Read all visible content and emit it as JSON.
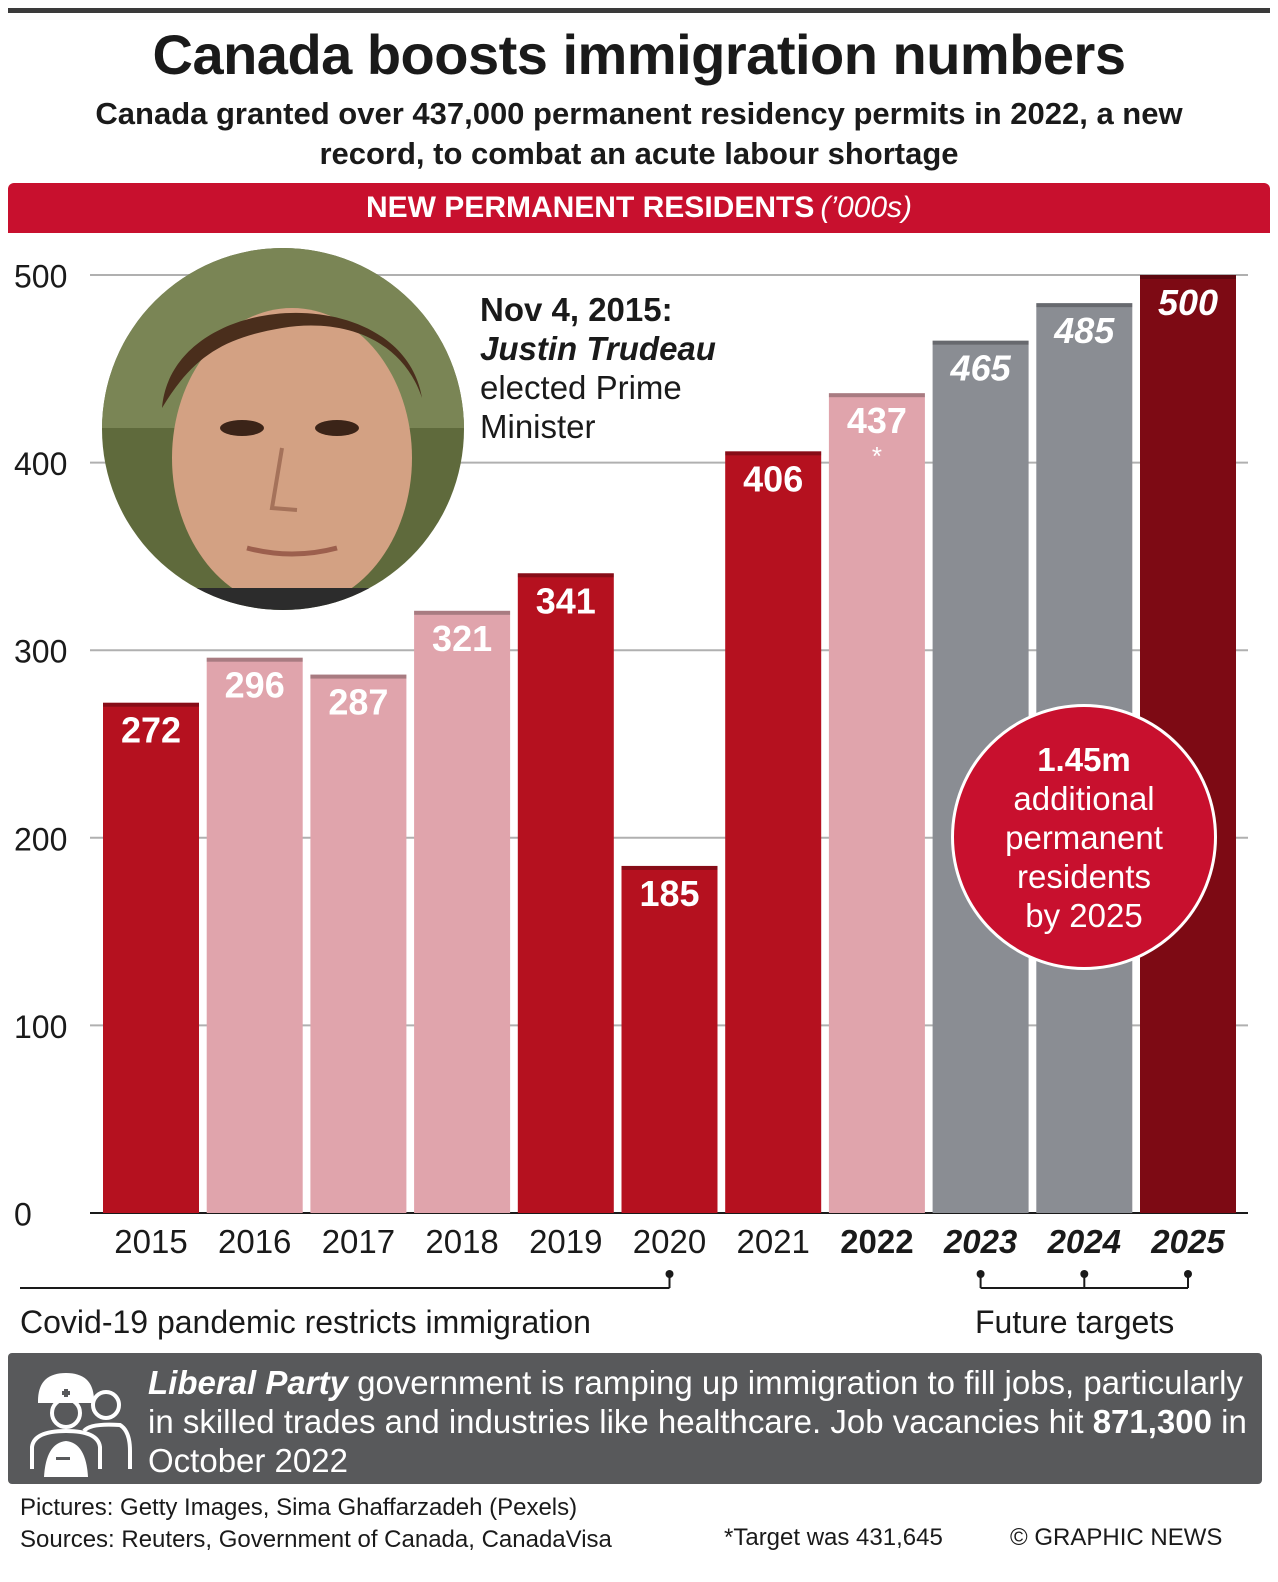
{
  "title": "Canada boosts immigration numbers",
  "subtitle": "Canada granted over 437,000 permanent residency permits in 2022, a new record, to combat an acute labour shortage",
  "banner": {
    "label": "NEW PERMANENT RESIDENTS",
    "unit": "(’000s)"
  },
  "annotation": {
    "date": "Nov 4, 2015:",
    "name": "Justin Trudeau",
    "line1": "elected Prime",
    "line2": "Minister"
  },
  "bubble": {
    "big": "1.45m",
    "line1": "additional",
    "line2": "permanent",
    "line3": "residents",
    "line4": "by 2025"
  },
  "notes": {
    "covid": "Covid-19 pandemic restricts immigration",
    "future": "Future targets"
  },
  "info": {
    "party": "Liberal Party",
    "text1": " government is ramping up immigration to fill jobs, particularly in skilled trades and industries like healthcare. Job vacancies hit ",
    "vacancies": "871,300",
    "text2": " in October 2022"
  },
  "credits": {
    "pictures": "Pictures: Getty Images, Sima Ghaffarzadeh (Pexels)",
    "sources": "Sources: Reuters, Government of Canada, CanadaVisa",
    "footnote": "*Target was 431,645",
    "copyright": "© GRAPHIC NEWS"
  },
  "chart_data": {
    "type": "bar",
    "title": "NEW PERMANENT RESIDENTS",
    "ylabel": "('000s)",
    "ylim": [
      0,
      500
    ],
    "yticks": [
      0,
      100,
      200,
      300,
      400,
      500
    ],
    "categories": [
      "2015",
      "2016",
      "2017",
      "2018",
      "2019",
      "2020",
      "2021",
      "2022",
      "2023",
      "2024",
      "2025"
    ],
    "values": [
      272,
      296,
      287,
      321,
      341,
      185,
      406,
      437,
      465,
      485,
      500
    ],
    "value_labels": [
      "272",
      "296",
      "287",
      "321",
      "341",
      "185",
      "406",
      "437",
      "465",
      "485",
      "500"
    ],
    "bar_styles": [
      "red",
      "pink",
      "pink",
      "pink",
      "red",
      "red",
      "red",
      "pink",
      "grey",
      "grey",
      "dark"
    ],
    "bold_categories": [
      "2022"
    ],
    "italic_categories": [
      "2023",
      "2024",
      "2025"
    ],
    "asterisk_category": "2022",
    "asterisk": "*",
    "colors": {
      "red": "#b5111f",
      "pink": "#e0a4ac",
      "grey": "#8a8d93",
      "dark": "#7d0a14",
      "grid": "#b0b0b0"
    }
  }
}
